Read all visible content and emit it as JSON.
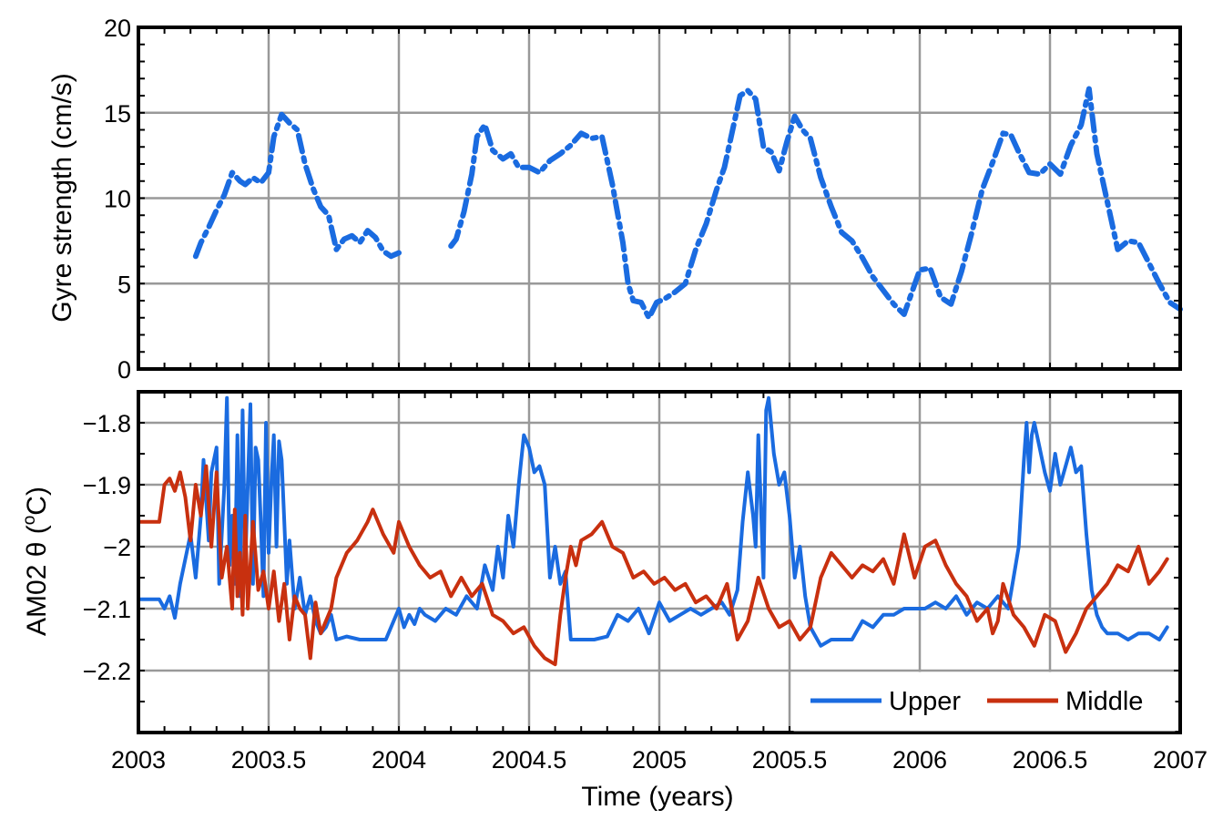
{
  "colors": {
    "upper": "#1a6be0",
    "middle": "#c8300f",
    "grid": "#999999",
    "frame": "#000000"
  },
  "chart_data": [
    {
      "type": "line",
      "xlabel": "",
      "ylabel": "Gyre strength (cm/s)",
      "xlim": [
        2003,
        2007
      ],
      "ylim": [
        0,
        20
      ],
      "xticks": [
        2003,
        2003.5,
        2004,
        2004.5,
        2005,
        2005.5,
        2006,
        2006.5,
        2007
      ],
      "yticks": [
        "0",
        "5",
        "10",
        "15",
        "20"
      ],
      "grid": true,
      "series": [
        {
          "key": "upper",
          "x": [
            2003.22,
            2003.24,
            2003.27,
            2003.3,
            2003.33,
            2003.36,
            2003.39,
            2003.41,
            2003.44,
            2003.47,
            2003.5,
            2003.52,
            2003.55,
            2003.58,
            2003.61,
            2003.64,
            2003.67,
            2003.7,
            2003.73,
            2003.76,
            2003.79,
            2003.82,
            2003.85,
            2003.88,
            2003.91,
            2003.94,
            2003.97,
            2004.0,
            2004.2,
            2004.22,
            2004.25,
            2004.28,
            2004.3,
            2004.33,
            2004.36,
            2004.4,
            2004.43,
            2004.46,
            2004.5,
            2004.54,
            2004.58,
            2004.62,
            2004.66,
            2004.7,
            2004.74,
            2004.78,
            2004.82,
            2004.86,
            2004.88,
            2004.9,
            2004.93,
            2004.96,
            2004.99,
            2005.02,
            2005.06,
            2005.1,
            2005.14,
            2005.18,
            2005.22,
            2005.25,
            2005.28,
            2005.31,
            2005.34,
            2005.37,
            2005.4,
            2005.43,
            2005.46,
            2005.49,
            2005.52,
            2005.55,
            2005.58,
            2005.62,
            2005.66,
            2005.7,
            2005.74,
            2005.78,
            2005.82,
            2005.86,
            2005.9,
            2005.94,
            2005.97,
            2006.0,
            2006.04,
            2006.08,
            2006.12,
            2006.16,
            2006.2,
            2006.24,
            2006.28,
            2006.32,
            2006.35,
            2006.38,
            2006.42,
            2006.46,
            2006.5,
            2006.54,
            2006.58,
            2006.62,
            2006.65,
            2006.68,
            2006.72,
            2006.76,
            2006.8,
            2006.84,
            2006.88,
            2006.92,
            2006.96,
            2007.0
          ],
          "y": [
            6.6,
            7.4,
            8.3,
            9.3,
            10.2,
            11.5,
            11.0,
            10.8,
            11.2,
            10.9,
            11.5,
            13.6,
            14.9,
            14.4,
            14.0,
            12.0,
            10.6,
            9.5,
            9.0,
            7.0,
            7.6,
            7.8,
            7.4,
            8.1,
            7.7,
            6.9,
            6.6,
            6.8,
            7.2,
            7.6,
            9.2,
            11.4,
            13.6,
            14.3,
            12.8,
            12.3,
            12.6,
            11.8,
            11.8,
            11.5,
            12.2,
            12.6,
            13.1,
            13.8,
            13.5,
            13.6,
            10.8,
            7.4,
            5.0,
            4.0,
            3.9,
            3.0,
            3.9,
            4.1,
            4.5,
            5.0,
            7.0,
            8.5,
            10.5,
            11.8,
            13.9,
            16.0,
            16.3,
            15.8,
            13.0,
            12.7,
            11.6,
            13.3,
            14.8,
            14.0,
            13.5,
            11.2,
            9.5,
            8.0,
            7.5,
            6.5,
            5.4,
            4.6,
            3.8,
            3.2,
            4.5,
            5.8,
            5.9,
            4.2,
            3.8,
            5.7,
            8.0,
            10.5,
            12.1,
            13.8,
            13.7,
            12.7,
            11.5,
            11.4,
            12.0,
            11.4,
            13.1,
            14.3,
            16.4,
            12.6,
            9.8,
            7.0,
            7.5,
            7.4,
            6.2,
            5.0,
            3.9,
            3.5
          ],
          "breaks_after": [
            27
          ]
        }
      ]
    },
    {
      "type": "line",
      "xlabel": "Time (years)",
      "ylabel": "AM02 θ (",
      "ylabel_sup": "o",
      "ylabel_end": "C)",
      "xlim": [
        2003,
        2007
      ],
      "ylim": [
        -2.3,
        -1.75
      ],
      "xticks": [
        2003,
        2003.5,
        2004,
        2004.5,
        2005,
        2005.5,
        2006,
        2006.5,
        2007
      ],
      "xtick_labels": [
        "2003",
        "2003.5",
        "2004",
        "2004.5",
        "2005",
        "2005.5",
        "2006",
        "2006.5",
        "2007"
      ],
      "yticks": [
        -1.8,
        -1.9,
        -2.0,
        -2.1,
        -2.2
      ],
      "ytick_labels": [
        "−1.8",
        "−1.9",
        "−2",
        "−2.1",
        "−2.2"
      ],
      "grid": true,
      "legend_position": "bottom-right",
      "series": [
        {
          "name": "Upper",
          "key": "upper",
          "x": [
            2003.0,
            2003.06,
            2003.08,
            2003.1,
            2003.12,
            2003.14,
            2003.16,
            2003.18,
            2003.2,
            2003.22,
            2003.24,
            2003.25,
            2003.27,
            2003.28,
            2003.3,
            2003.31,
            2003.33,
            2003.34,
            2003.35,
            2003.36,
            2003.37,
            2003.38,
            2003.39,
            2003.4,
            2003.41,
            2003.42,
            2003.43,
            2003.44,
            2003.45,
            2003.46,
            2003.47,
            2003.48,
            2003.49,
            2003.5,
            2003.51,
            2003.52,
            2003.53,
            2003.54,
            2003.55,
            2003.56,
            2003.57,
            2003.58,
            2003.6,
            2003.62,
            2003.64,
            2003.66,
            2003.68,
            2003.7,
            2003.72,
            2003.74,
            2003.76,
            2003.8,
            2003.85,
            2003.9,
            2003.95,
            2004.0,
            2004.02,
            2004.04,
            2004.06,
            2004.08,
            2004.1,
            2004.14,
            2004.18,
            2004.22,
            2004.26,
            2004.3,
            2004.33,
            2004.36,
            2004.38,
            2004.4,
            2004.42,
            2004.44,
            2004.46,
            2004.47,
            2004.48,
            2004.5,
            2004.52,
            2004.54,
            2004.56,
            2004.58,
            2004.6,
            2004.62,
            2004.64,
            2004.66,
            2004.7,
            2004.75,
            2004.8,
            2004.84,
            2004.88,
            2004.92,
            2004.96,
            2005.0,
            2005.04,
            2005.08,
            2005.12,
            2005.16,
            2005.2,
            2005.24,
            2005.27,
            2005.3,
            2005.32,
            2005.34,
            2005.36,
            2005.37,
            2005.38,
            2005.4,
            2005.41,
            2005.42,
            2005.44,
            2005.46,
            2005.48,
            2005.5,
            2005.52,
            2005.54,
            2005.56,
            2005.58,
            2005.62,
            2005.66,
            2005.7,
            2005.74,
            2005.78,
            2005.82,
            2005.86,
            2005.9,
            2005.94,
            2005.98,
            2006.02,
            2006.06,
            2006.1,
            2006.14,
            2006.18,
            2006.22,
            2006.26,
            2006.3,
            2006.34,
            2006.36,
            2006.38,
            2006.4,
            2006.41,
            2006.42,
            2006.43,
            2006.44,
            2006.46,
            2006.48,
            2006.5,
            2006.52,
            2006.54,
            2006.56,
            2006.58,
            2006.6,
            2006.62,
            2006.64,
            2006.66,
            2006.68,
            2006.7,
            2006.72,
            2006.76,
            2006.8,
            2006.84,
            2006.88,
            2006.92,
            2006.95
          ],
          "y": [
            -2.085,
            -2.085,
            -2.085,
            -2.1,
            -2.08,
            -2.115,
            -2.06,
            -2.02,
            -1.98,
            -2.05,
            -1.95,
            -1.86,
            -1.99,
            -1.88,
            -1.84,
            -2.06,
            -1.9,
            -1.76,
            -2.03,
            -1.95,
            -2.06,
            -1.82,
            -2.08,
            -1.78,
            -2.03,
            -1.9,
            -1.77,
            -2.06,
            -1.84,
            -1.86,
            -1.96,
            -2.08,
            -1.8,
            -2.01,
            -1.9,
            -1.82,
            -2.0,
            -1.83,
            -1.86,
            -1.96,
            -2.06,
            -1.99,
            -2.1,
            -2.05,
            -2.11,
            -2.08,
            -2.12,
            -2.14,
            -2.13,
            -2.11,
            -2.15,
            -2.145,
            -2.15,
            -2.15,
            -2.15,
            -2.1,
            -2.13,
            -2.11,
            -2.125,
            -2.1,
            -2.11,
            -2.12,
            -2.1,
            -2.11,
            -2.08,
            -2.1,
            -2.03,
            -2.07,
            -2.0,
            -2.05,
            -1.95,
            -2.0,
            -1.9,
            -1.86,
            -1.82,
            -1.84,
            -1.88,
            -1.87,
            -1.9,
            -2.05,
            -2.0,
            -2.06,
            -2.04,
            -2.15,
            -2.15,
            -2.15,
            -2.145,
            -2.11,
            -2.12,
            -2.1,
            -2.14,
            -2.09,
            -2.12,
            -2.11,
            -2.1,
            -2.11,
            -2.1,
            -2.09,
            -2.11,
            -2.07,
            -1.96,
            -1.88,
            -1.95,
            -2.0,
            -1.82,
            -2.05,
            -1.78,
            -1.76,
            -1.85,
            -1.9,
            -1.88,
            -1.95,
            -2.05,
            -2.0,
            -2.08,
            -2.13,
            -2.16,
            -2.15,
            -2.15,
            -2.15,
            -2.12,
            -2.13,
            -2.11,
            -2.11,
            -2.1,
            -2.1,
            -2.1,
            -2.09,
            -2.1,
            -2.08,
            -2.11,
            -2.09,
            -2.1,
            -2.08,
            -2.1,
            -2.05,
            -2.0,
            -1.86,
            -1.8,
            -1.88,
            -1.82,
            -1.8,
            -1.84,
            -1.88,
            -1.91,
            -1.85,
            -1.9,
            -1.87,
            -1.84,
            -1.88,
            -1.87,
            -1.98,
            -2.07,
            -2.11,
            -2.13,
            -2.14,
            -2.14,
            -2.15,
            -2.14,
            -2.14,
            -2.15,
            -2.13
          ]
        },
        {
          "name": "Middle",
          "key": "middle",
          "x": [
            2003.0,
            2003.04,
            2003.08,
            2003.1,
            2003.12,
            2003.14,
            2003.16,
            2003.18,
            2003.2,
            2003.22,
            2003.24,
            2003.26,
            2003.28,
            2003.3,
            2003.32,
            2003.34,
            2003.36,
            2003.37,
            2003.38,
            2003.39,
            2003.4,
            2003.41,
            2003.42,
            2003.44,
            2003.46,
            2003.48,
            2003.5,
            2003.52,
            2003.54,
            2003.56,
            2003.58,
            2003.6,
            2003.62,
            2003.64,
            2003.66,
            2003.68,
            2003.7,
            2003.72,
            2003.74,
            2003.76,
            2003.8,
            2003.84,
            2003.88,
            2003.9,
            2003.94,
            2003.98,
            2004.0,
            2004.04,
            2004.08,
            2004.12,
            2004.16,
            2004.2,
            2004.24,
            2004.28,
            2004.32,
            2004.36,
            2004.4,
            2004.44,
            2004.48,
            2004.52,
            2004.56,
            2004.6,
            2004.62,
            2004.64,
            2004.66,
            2004.68,
            2004.7,
            2004.74,
            2004.78,
            2004.82,
            2004.86,
            2004.9,
            2004.94,
            2004.98,
            2005.02,
            2005.06,
            2005.1,
            2005.14,
            2005.18,
            2005.22,
            2005.26,
            2005.3,
            2005.34,
            2005.38,
            2005.42,
            2005.46,
            2005.5,
            2005.54,
            2005.58,
            2005.62,
            2005.66,
            2005.7,
            2005.74,
            2005.78,
            2005.82,
            2005.86,
            2005.9,
            2005.94,
            2005.98,
            2006.02,
            2006.06,
            2006.1,
            2006.14,
            2006.18,
            2006.22,
            2006.26,
            2006.28,
            2006.3,
            2006.32,
            2006.36,
            2006.4,
            2006.44,
            2006.48,
            2006.52,
            2006.56,
            2006.6,
            2006.64,
            2006.68,
            2006.72,
            2006.76,
            2006.8,
            2006.84,
            2006.88,
            2006.92,
            2006.95
          ],
          "y": [
            -1.96,
            -1.96,
            -1.96,
            -1.9,
            -1.89,
            -1.91,
            -1.88,
            -1.92,
            -1.99,
            -1.9,
            -1.95,
            -1.87,
            -2.0,
            -1.88,
            -2.05,
            -2.0,
            -2.1,
            -1.94,
            -2.08,
            -2.01,
            -2.11,
            -1.95,
            -2.1,
            -1.96,
            -2.07,
            -2.04,
            -2.1,
            -2.04,
            -2.12,
            -2.06,
            -2.15,
            -2.08,
            -2.1,
            -2.11,
            -2.18,
            -2.09,
            -2.14,
            -2.12,
            -2.1,
            -2.05,
            -2.01,
            -1.99,
            -1.96,
            -1.94,
            -1.98,
            -2.01,
            -1.96,
            -2.0,
            -2.03,
            -2.05,
            -2.04,
            -2.08,
            -2.05,
            -2.08,
            -2.06,
            -2.11,
            -2.12,
            -2.14,
            -2.13,
            -2.16,
            -2.18,
            -2.19,
            -2.11,
            -2.05,
            -2.0,
            -2.03,
            -1.99,
            -1.98,
            -1.96,
            -2.0,
            -2.01,
            -2.05,
            -2.04,
            -2.06,
            -2.05,
            -2.07,
            -2.06,
            -2.09,
            -2.08,
            -2.1,
            -2.06,
            -2.15,
            -2.12,
            -2.05,
            -2.1,
            -2.13,
            -2.12,
            -2.15,
            -2.13,
            -2.05,
            -2.01,
            -2.03,
            -2.05,
            -2.03,
            -2.04,
            -2.02,
            -2.06,
            -1.98,
            -2.05,
            -2.0,
            -1.99,
            -2.03,
            -2.06,
            -2.08,
            -2.12,
            -2.1,
            -2.14,
            -2.12,
            -2.06,
            -2.11,
            -2.13,
            -2.16,
            -2.11,
            -2.12,
            -2.17,
            -2.14,
            -2.1,
            -2.08,
            -2.06,
            -2.03,
            -2.04,
            -2.0,
            -2.06,
            -2.04,
            -2.02
          ]
        }
      ]
    }
  ]
}
